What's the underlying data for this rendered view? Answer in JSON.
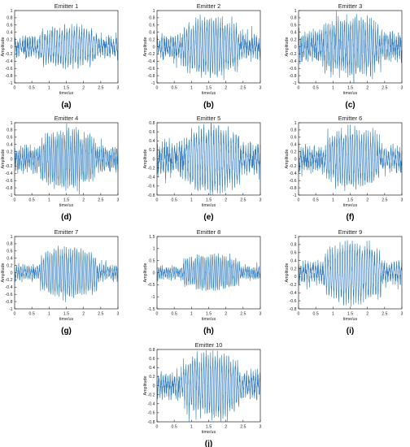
{
  "figure": {
    "panels": [
      {
        "title": "Emitter 1",
        "label": "(a)"
      },
      {
        "title": "Emitter 2",
        "label": "(b)"
      },
      {
        "title": "Emitter 3",
        "label": "(c)"
      },
      {
        "title": "Emitter 4",
        "label": "(d)"
      },
      {
        "title": "Emitter 5",
        "label": "(e)"
      },
      {
        "title": "Emitter 6",
        "label": "(f)"
      },
      {
        "title": "Emitter 7",
        "label": "(g)"
      },
      {
        "title": "Emitter 8",
        "label": "(h)"
      },
      {
        "title": "Emitter 9",
        "label": "(i)"
      },
      {
        "title": "Emitter 10",
        "label": "(j)"
      }
    ]
  },
  "colors": {
    "signal": "#0b63b3",
    "axes": "#262626",
    "text": "#222222"
  },
  "chart_data": [
    {
      "type": "line",
      "title": "Emitter 1",
      "xlabel": "time/us",
      "ylabel": "Amplitude",
      "xlim": [
        0,
        3
      ],
      "ylim": [
        -1,
        1
      ],
      "xticks": [
        "0",
        "0.5",
        "1",
        "1.5",
        "2",
        "2.5",
        "3"
      ],
      "yticks": [
        "-1",
        "-0.8",
        "-0.6",
        "-0.4",
        "-0.2",
        "0",
        "0.2",
        "0.4",
        "0.6",
        "0.8",
        "1"
      ],
      "signal": {
        "baseline_amplitude": 0.2,
        "burst_start": 0.75,
        "burst_end": 2.4,
        "burst_peak_amplitude": 0.55,
        "mean": 0.0
      }
    },
    {
      "type": "line",
      "title": "Emitter 2",
      "xlabel": "time/us",
      "ylabel": "Amplitude",
      "xlim": [
        0,
        3
      ],
      "ylim": [
        -1,
        1
      ],
      "xticks": [
        "0",
        "0.5",
        "1",
        "1.5",
        "2",
        "2.5",
        "3"
      ],
      "yticks": [
        "-1",
        "-0.8",
        "-0.6",
        "-0.4",
        "-0.2",
        "0",
        "0.2",
        "0.4",
        "0.6",
        "0.8",
        "1"
      ],
      "signal": {
        "baseline_amplitude": 0.25,
        "burst_start": 0.75,
        "burst_end": 2.35,
        "burst_peak_amplitude": 0.8,
        "mean": 0.0
      }
    },
    {
      "type": "line",
      "title": "Emitter 3",
      "xlabel": "time/us",
      "ylabel": "Amplitude",
      "xlim": [
        0,
        3
      ],
      "ylim": [
        -1,
        1
      ],
      "xticks": [
        "0",
        "0.5",
        "1",
        "1.5",
        "2",
        "2.5",
        "3"
      ],
      "yticks": [
        "-1",
        "-0.8",
        "-0.6",
        "-0.4",
        "-0.2",
        "0",
        "0.2",
        "0.4",
        "0.6",
        "0.8",
        "1"
      ],
      "signal": {
        "baseline_amplitude": 0.3,
        "burst_start": 0.7,
        "burst_end": 2.35,
        "burst_peak_amplitude": 0.75,
        "mean": 0.0
      }
    },
    {
      "type": "line",
      "title": "Emitter 4",
      "xlabel": "time/us",
      "ylabel": "Amplitude",
      "xlim": [
        0,
        3
      ],
      "ylim": [
        -1,
        1
      ],
      "xticks": [
        "0",
        "0.5",
        "1",
        "1.5",
        "2",
        "2.5",
        "3"
      ],
      "yticks": [
        "-1",
        "-0.8",
        "-0.6",
        "-0.4",
        "-0.2",
        "0",
        "0.2",
        "0.4",
        "0.6",
        "0.8",
        "1"
      ],
      "signal": {
        "baseline_amplitude": 0.25,
        "burst_start": 0.75,
        "burst_end": 2.35,
        "burst_peak_amplitude": 0.8,
        "mean": 0.0
      }
    },
    {
      "type": "line",
      "title": "Emitter 5",
      "xlabel": "time/us",
      "ylabel": "Amplitude",
      "xlim": [
        0,
        3
      ],
      "ylim": [
        -0.8,
        0.8
      ],
      "xticks": [
        "0",
        "0.5",
        "1",
        "1.5",
        "2",
        "2.5",
        "3"
      ],
      "yticks": [
        "-0.8",
        "-0.6",
        "-0.4",
        "-0.2",
        "0",
        "0.2",
        "0.4",
        "0.6",
        "0.8"
      ],
      "signal": {
        "baseline_amplitude": 0.25,
        "burst_start": 0.8,
        "burst_end": 2.4,
        "burst_peak_amplitude": 0.72,
        "mean": 0.0
      }
    },
    {
      "type": "line",
      "title": "Emitter 6",
      "xlabel": "time/us",
      "ylabel": "Amplitude",
      "xlim": [
        0,
        3
      ],
      "ylim": [
        -1,
        1
      ],
      "xticks": [
        "0",
        "0.5",
        "1",
        "1.5",
        "2",
        "2.5",
        "3"
      ],
      "yticks": [
        "-1",
        "-0.8",
        "-0.6",
        "-0.4",
        "-0.2",
        "0",
        "0.2",
        "0.4",
        "0.6",
        "0.8",
        "1"
      ],
      "signal": {
        "baseline_amplitude": 0.25,
        "burst_start": 0.8,
        "burst_end": 2.35,
        "burst_peak_amplitude": 0.8,
        "mean": 0.0
      }
    },
    {
      "type": "line",
      "title": "Emitter 7",
      "xlabel": "time/us",
      "ylabel": "Amplitude",
      "xlim": [
        0,
        3
      ],
      "ylim": [
        -1,
        1
      ],
      "xticks": [
        "0",
        "0.5",
        "1",
        "1.5",
        "2",
        "2.5",
        "3"
      ],
      "yticks": [
        "-1",
        "-0.8",
        "-0.6",
        "-0.4",
        "-0.2",
        "0",
        "0.2",
        "0.4",
        "0.6",
        "0.8",
        "1"
      ],
      "signal": {
        "baseline_amplitude": 0.15,
        "burst_start": 0.75,
        "burst_end": 2.4,
        "burst_peak_amplitude": 0.7,
        "mean": 0.0
      }
    },
    {
      "type": "line",
      "title": "Emitter 8",
      "xlabel": "time/us",
      "ylabel": "Amplitude",
      "xlim": [
        0,
        3
      ],
      "ylim": [
        -1.5,
        1.5
      ],
      "xticks": [
        "0",
        "0.5",
        "1",
        "1.5",
        "2",
        "2.5",
        "3"
      ],
      "yticks": [
        "-1.5",
        "-1",
        "-0.5",
        "0",
        "0.5",
        "1",
        "1.5"
      ],
      "signal": {
        "baseline_amplitude": 0.2,
        "burst_start": 0.75,
        "burst_end": 2.4,
        "burst_peak_amplitude": 0.75,
        "mean": 0.0
      }
    },
    {
      "type": "line",
      "title": "Emitter 9",
      "xlabel": "time/us",
      "ylabel": "Amplitude",
      "xlim": [
        0,
        3
      ],
      "ylim": [
        -0.8,
        1
      ],
      "xticks": [
        "0",
        "0.5",
        "1",
        "1.5",
        "2",
        "2.5",
        "3"
      ],
      "yticks": [
        "-0.8",
        "-0.6",
        "-0.4",
        "-0.2",
        "0",
        "0.2",
        "0.4",
        "0.6",
        "0.8",
        "1"
      ],
      "signal": {
        "baseline_amplitude": 0.2,
        "burst_start": 0.75,
        "burst_end": 2.4,
        "burst_peak_amplitude": 0.75,
        "mean": 0.1
      }
    },
    {
      "type": "line",
      "title": "Emitter 10",
      "xlabel": "time/us",
      "ylabel": "Amplitude",
      "xlim": [
        0,
        3
      ],
      "ylim": [
        -0.8,
        0.8
      ],
      "xticks": [
        "0",
        "0.5",
        "1",
        "1.5",
        "2",
        "2.5",
        "3"
      ],
      "yticks": [
        "-0.8",
        "-0.6",
        "-0.4",
        "-0.2",
        "0",
        "0.2",
        "0.4",
        "0.6",
        "0.8"
      ],
      "signal": {
        "baseline_amplitude": 0.2,
        "burst_start": 0.75,
        "burst_end": 2.4,
        "burst_peak_amplitude": 0.72,
        "mean": 0.0
      }
    }
  ]
}
